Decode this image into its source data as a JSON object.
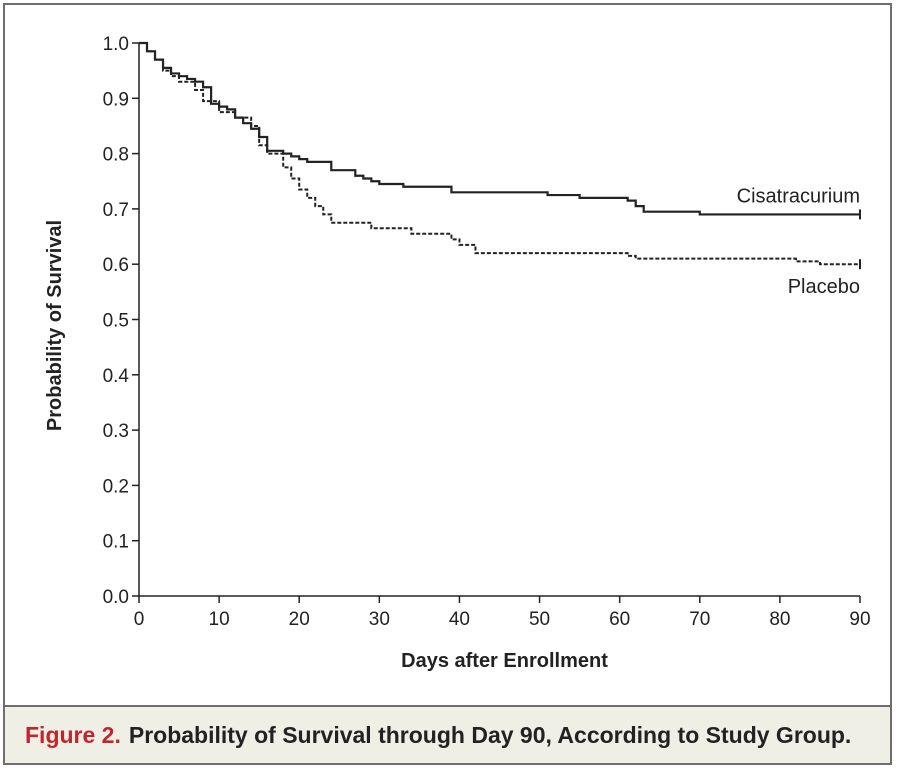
{
  "caption": {
    "label": "Figure 2.",
    "text": "Probability of Survival through Day 90, According to Study Group."
  },
  "chart_data": {
    "type": "line",
    "title": "",
    "xlabel": "Days after Enrollment",
    "ylabel": "Probability of Survival",
    "xlim": [
      0,
      90
    ],
    "ylim": [
      0,
      1
    ],
    "x_ticks": [
      0,
      10,
      20,
      30,
      40,
      50,
      60,
      70,
      80,
      90
    ],
    "x_tick_labels": [
      "0",
      "10",
      "20",
      "30",
      "40",
      "50",
      "60",
      "70",
      "80",
      "90"
    ],
    "y_ticks": [
      0,
      0.1,
      0.2,
      0.3,
      0.4,
      0.5,
      0.6,
      0.7,
      0.8,
      0.9,
      1.0
    ],
    "y_tick_labels": [
      "0.0",
      "0.1",
      "0.2",
      "0.3",
      "0.4",
      "0.5",
      "0.6",
      "0.7",
      "0.8",
      "0.9",
      "1.0"
    ],
    "grid": false,
    "step": true,
    "series": [
      {
        "name": "Cisatracurium",
        "line_style": "solid",
        "color": "#222222",
        "x": [
          0,
          1,
          2,
          3,
          4,
          5,
          6,
          7,
          8,
          9,
          10,
          11,
          12,
          13,
          14,
          15,
          16,
          18,
          19,
          20,
          21,
          24,
          27,
          28,
          29,
          30,
          33,
          39,
          51,
          55,
          61,
          62,
          63,
          70,
          90
        ],
        "y": [
          1.0,
          0.985,
          0.97,
          0.955,
          0.945,
          0.94,
          0.935,
          0.93,
          0.92,
          0.89,
          0.885,
          0.88,
          0.865,
          0.855,
          0.845,
          0.83,
          0.805,
          0.8,
          0.795,
          0.79,
          0.785,
          0.77,
          0.76,
          0.755,
          0.75,
          0.745,
          0.74,
          0.73,
          0.725,
          0.72,
          0.715,
          0.705,
          0.695,
          0.69,
          0.69
        ],
        "end_label": "Cisatracurium"
      },
      {
        "name": "Placebo",
        "line_style": "dashed",
        "color": "#222222",
        "x": [
          0,
          1,
          2,
          3,
          4,
          5,
          7,
          8,
          10,
          12,
          14,
          15,
          16,
          18,
          19,
          20,
          21,
          22,
          23,
          24,
          29,
          34,
          39,
          40,
          42,
          61,
          62,
          82,
          85,
          90
        ],
        "y": [
          1.0,
          0.985,
          0.97,
          0.95,
          0.94,
          0.93,
          0.915,
          0.895,
          0.875,
          0.865,
          0.85,
          0.815,
          0.8,
          0.775,
          0.755,
          0.735,
          0.72,
          0.705,
          0.69,
          0.675,
          0.665,
          0.655,
          0.645,
          0.635,
          0.62,
          0.615,
          0.61,
          0.605,
          0.6,
          0.6
        ],
        "end_label": "Placebo"
      }
    ]
  }
}
